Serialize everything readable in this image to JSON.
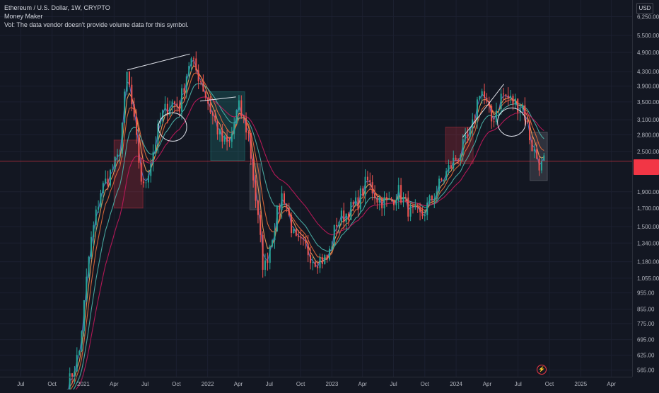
{
  "legend": {
    "symbol": "Ethereum / U.S. Dollar, 1W, CRYPTO",
    "indicator": "Money Maker",
    "volume_note": "Vol: The data vendor doesn't provide volume data for this symbol."
  },
  "currency": "USD",
  "colors": {
    "background": "#131722",
    "up": "#26a69a",
    "down": "#ef5350",
    "ma_fast": "#5b6ec7",
    "ma_mid": "#f7a35c",
    "ma_slow": "#e86b3a",
    "ma_long": "#4db6ac",
    "ma_longest": "#c2185b",
    "last_price_line": "#f23645"
  },
  "chart_data": {
    "type": "candlestick",
    "title": "",
    "y_scale": "log",
    "ylim": [
      540,
      7000
    ],
    "xlim": [
      "2020-05-01",
      "2025-06-01"
    ],
    "y_ticks": [
      "6,250.00",
      "5,500.00",
      "4,900.00",
      "4,300.00",
      "3,900.00",
      "3,500.00",
      "3,100.00",
      "2,800.00",
      "2,500.00",
      "1,900.00",
      "1,700.00",
      "1,500.00",
      "1,340.00",
      "1,180.00",
      "1,055.00",
      "955.00",
      "855.00",
      "775.00",
      "695.00",
      "625.00",
      "565.00"
    ],
    "x_ticks": [
      {
        "label": "Jul",
        "date": "2020-07-01"
      },
      {
        "label": "Oct",
        "date": "2020-10-01"
      },
      {
        "label": "2021",
        "date": "2021-01-01"
      },
      {
        "label": "Apr",
        "date": "2021-04-01"
      },
      {
        "label": "Jul",
        "date": "2021-07-01"
      },
      {
        "label": "Oct",
        "date": "2021-10-01"
      },
      {
        "label": "2022",
        "date": "2022-01-01"
      },
      {
        "label": "Apr",
        "date": "2022-04-01"
      },
      {
        "label": "Jul",
        "date": "2022-07-01"
      },
      {
        "label": "Oct",
        "date": "2022-10-01"
      },
      {
        "label": "2023",
        "date": "2023-01-01"
      },
      {
        "label": "Apr",
        "date": "2023-04-01"
      },
      {
        "label": "Jul",
        "date": "2023-07-01"
      },
      {
        "label": "Oct",
        "date": "2023-10-01"
      },
      {
        "label": "2024",
        "date": "2024-01-01"
      },
      {
        "label": "Apr",
        "date": "2024-04-01"
      },
      {
        "label": "Jul",
        "date": "2024-07-01"
      },
      {
        "label": "Oct",
        "date": "2024-10-01"
      },
      {
        "label": "2025",
        "date": "2025-01-01"
      },
      {
        "label": "Apr",
        "date": "2025-04-01"
      }
    ],
    "key_points": [
      [
        "2020-11-15",
        500
      ],
      [
        "2020-12-20",
        640
      ],
      [
        "2021-01-20",
        1300
      ],
      [
        "2021-02-20",
        1900
      ],
      [
        "2021-04-15",
        2400
      ],
      [
        "2021-05-10",
        4300
      ],
      [
        "2021-06-25",
        1900
      ],
      [
        "2021-08-20",
        3200
      ],
      [
        "2021-09-15",
        3500
      ],
      [
        "2021-10-10",
        3400
      ],
      [
        "2021-11-10",
        4700
      ],
      [
        "2021-12-10",
        4100
      ],
      [
        "2022-01-10",
        3300
      ],
      [
        "2022-02-10",
        2700
      ],
      [
        "2022-03-05",
        2600
      ],
      [
        "2022-04-01",
        3400
      ],
      [
        "2022-05-01",
        2800
      ],
      [
        "2022-06-15",
        1100
      ],
      [
        "2022-07-15",
        1500
      ],
      [
        "2022-08-10",
        1900
      ],
      [
        "2022-09-15",
        1350
      ],
      [
        "2022-10-15",
        1300
      ],
      [
        "2022-11-10",
        1200
      ],
      [
        "2022-12-20",
        1200
      ],
      [
        "2023-01-15",
        1550
      ],
      [
        "2023-02-15",
        1650
      ],
      [
        "2023-03-15",
        1750
      ],
      [
        "2023-04-15",
        2050
      ],
      [
        "2023-05-15",
        1820
      ],
      [
        "2023-06-15",
        1750
      ],
      [
        "2023-07-15",
        1900
      ],
      [
        "2023-08-20",
        1650
      ],
      [
        "2023-09-20",
        1600
      ],
      [
        "2023-10-20",
        1800
      ],
      [
        "2023-11-20",
        2050
      ],
      [
        "2023-12-20",
        2300
      ],
      [
        "2024-01-15",
        2500
      ],
      [
        "2024-02-15",
        2850
      ],
      [
        "2024-03-12",
        3900
      ],
      [
        "2024-04-15",
        3050
      ],
      [
        "2024-05-15",
        3700
      ],
      [
        "2024-06-15",
        3500
      ],
      [
        "2024-07-15",
        3400
      ],
      [
        "2024-08-10",
        2600
      ],
      [
        "2024-09-06",
        2250
      ],
      [
        "2024-09-15",
        2340
      ]
    ],
    "moving_averages": [
      {
        "color": "ma_fast",
        "lag": 2
      },
      {
        "color": "ma_mid",
        "lag": 4
      },
      {
        "color": "ma_slow",
        "lag": 7
      },
      {
        "color": "ma_long",
        "lag": 13
      },
      {
        "color": "ma_longest",
        "lag": 24
      }
    ],
    "boxes": [
      {
        "start": "2021-04-01",
        "end": "2021-06-25",
        "low": 1700,
        "high": 2700,
        "color": "#f23645"
      },
      {
        "start": "2022-01-10",
        "end": "2022-04-20",
        "low": 2350,
        "high": 3750,
        "color": "#26a69a"
      },
      {
        "start": "2022-05-05",
        "end": "2022-06-05",
        "low": 1680,
        "high": 2300,
        "color": "#9598a1"
      },
      {
        "start": "2023-12-01",
        "end": "2024-02-20",
        "low": 2300,
        "high": 2950,
        "color": "#f23645"
      },
      {
        "start": "2024-08-05",
        "end": "2024-09-25",
        "low": 2050,
        "high": 2850,
        "color": "#9598a1"
      }
    ],
    "trendlines": [
      {
        "x1": "2021-05-10",
        "y1": 4350,
        "x2": "2021-11-10",
        "y2": 4850
      },
      {
        "x1": "2021-12-10",
        "y1": 3520,
        "x2": "2022-03-25",
        "y2": 3620
      },
      {
        "x1": "2024-01-20",
        "y1": 2750,
        "x2": "2024-05-20",
        "y2": 3950
      }
    ],
    "circles": [
      {
        "date": "2021-09-20",
        "price": 2950
      },
      {
        "date": "2024-06-12",
        "price": 3050
      }
    ],
    "last_price": 2340
  }
}
